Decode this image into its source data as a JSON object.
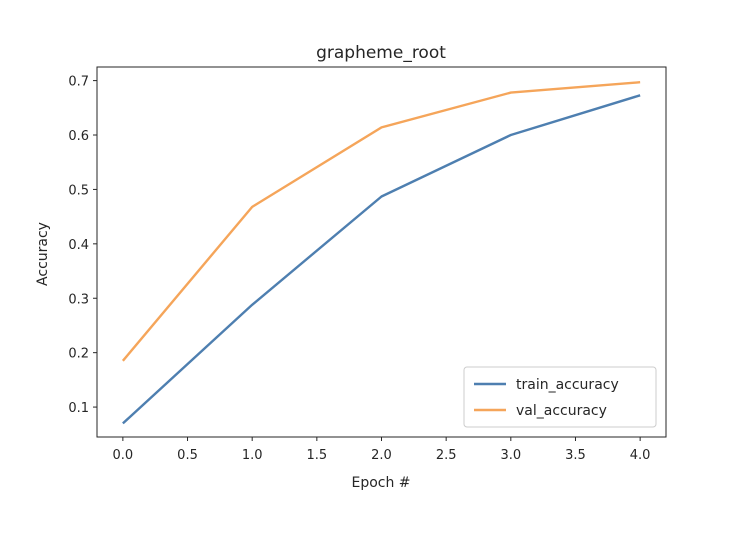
{
  "chart_data": {
    "type": "line",
    "title": "grapheme_root",
    "xlabel": "Epoch #",
    "ylabel": "Accuracy",
    "x": [
      0,
      1,
      2,
      3,
      4
    ],
    "xlim": [
      -0.2,
      4.2
    ],
    "ylim": [
      0.045,
      0.725
    ],
    "xticks": [
      "0.0",
      "0.5",
      "1.0",
      "1.5",
      "2.0",
      "2.5",
      "3.0",
      "3.5",
      "4.0"
    ],
    "yticks": [
      "0.1",
      "0.2",
      "0.3",
      "0.4",
      "0.5",
      "0.6",
      "0.7"
    ],
    "grid": false,
    "legend_position": "lower right",
    "series": [
      {
        "name": "train_accuracy",
        "color": "#4e7fb0",
        "values": [
          0.07,
          0.288,
          0.487,
          0.6,
          0.673
        ]
      },
      {
        "name": "val_accuracy",
        "color": "#f5a55a",
        "values": [
          0.185,
          0.468,
          0.614,
          0.678,
          0.697
        ]
      }
    ]
  }
}
